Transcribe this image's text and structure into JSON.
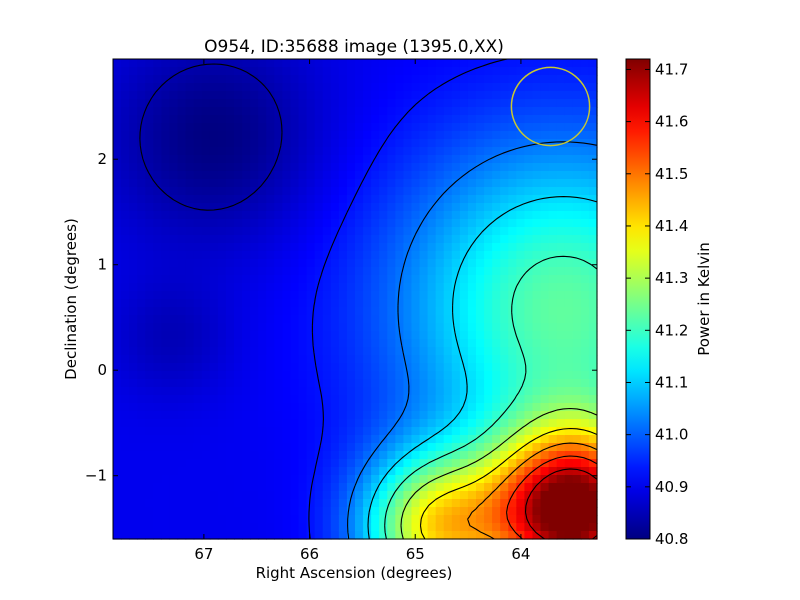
{
  "chart_data": {
    "type": "heatmap",
    "title": "O954, ID:35688 image (1395.0,XX)",
    "xlabel": "Right Ascension (degrees)",
    "ylabel": "Declination (degrees)",
    "colorbar_label": "Power in Kelvin",
    "xlim": [
      67.86,
      63.28
    ],
    "ylim": [
      -1.6,
      2.95
    ],
    "x_ticks": [
      {
        "value": 67,
        "label": "67"
      },
      {
        "value": 66,
        "label": "66"
      },
      {
        "value": 65,
        "label": "65"
      },
      {
        "value": 64,
        "label": "64"
      }
    ],
    "y_ticks": [
      {
        "value": -1,
        "label": "−1"
      },
      {
        "value": 0,
        "label": "0"
      },
      {
        "value": 1,
        "label": "1"
      },
      {
        "value": 2,
        "label": "2"
      }
    ],
    "colorbar_range": [
      40.8,
      41.72
    ],
    "colorbar_ticks": [
      {
        "value": 40.8,
        "label": "40.8"
      },
      {
        "value": 40.9,
        "label": "40.9"
      },
      {
        "value": 41.0,
        "label": "41.0"
      },
      {
        "value": 41.1,
        "label": "41.1"
      },
      {
        "value": 41.2,
        "label": "41.2"
      },
      {
        "value": 41.3,
        "label": "41.3"
      },
      {
        "value": 41.4,
        "label": "41.4"
      },
      {
        "value": 41.5,
        "label": "41.5"
      },
      {
        "value": 41.6,
        "label": "41.6"
      },
      {
        "value": 41.7,
        "label": "41.7"
      }
    ],
    "colormap": "jet",
    "grid": false,
    "beam_circle": {
      "ra": 63.72,
      "dec": 2.5,
      "radius_deg": 0.37,
      "color": "#c8c832"
    },
    "value_field": {
      "baseline": 40.9,
      "features": [
        {
          "ra": 66.9,
          "dec": 2.2,
          "amplitude": -0.1,
          "sigma": 0.7
        },
        {
          "ra": 67.3,
          "dec": 0.3,
          "amplitude": -0.05,
          "sigma": 0.4
        },
        {
          "ra": 63.5,
          "dec": -1.35,
          "amplitude": 0.82,
          "sigma": 0.55
        },
        {
          "ra": 64.8,
          "dec": -1.5,
          "amplitude": 0.45,
          "sigma": 0.5
        },
        {
          "ra": 63.6,
          "dec": 0.6,
          "amplitude": 0.33,
          "sigma": 1.1
        }
      ]
    },
    "contour_levels": [
      40.84,
      40.93,
      41.02,
      41.11,
      41.2,
      41.29,
      41.38,
      41.47,
      41.56,
      41.65
    ]
  }
}
